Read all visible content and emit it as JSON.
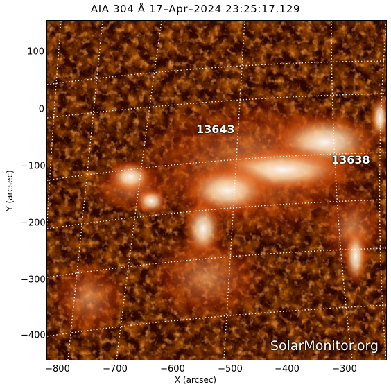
{
  "title": "AIA 304 Å 17–Apr–2024 23:25:17.129",
  "xlabel": "X (arcsec)",
  "ylabel": "Y (arcsec)",
  "x_ticks": [
    "−800",
    "−700",
    "−600",
    "−500",
    "−400",
    "−300"
  ],
  "y_ticks": [
    "100",
    "0",
    "−100",
    "−200",
    "−300",
    "−400"
  ],
  "regions": [
    {
      "label": "13643"
    },
    {
      "label": "13638"
    }
  ],
  "watermark": "SolarMonitor.org",
  "colors": {
    "background": "#ffffff",
    "image_dark": "#2a0500",
    "image_mid": "#b32a00",
    "image_bright": "#ffffff",
    "grid": "#ffffff"
  }
}
